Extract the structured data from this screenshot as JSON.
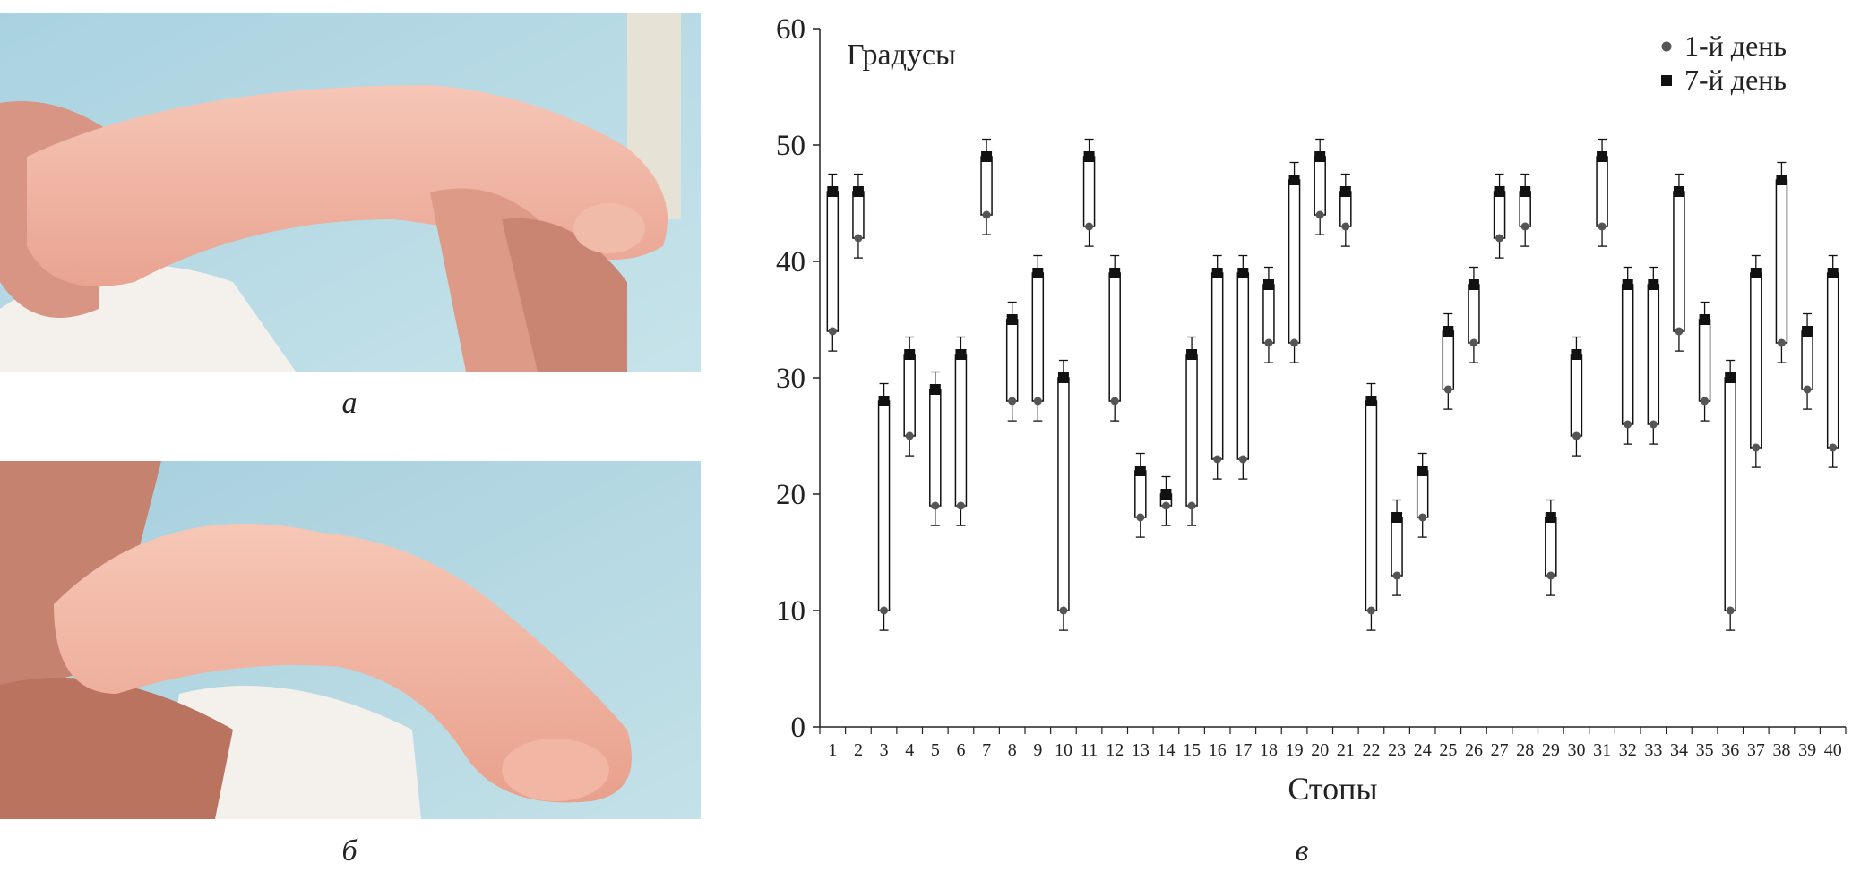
{
  "captions": {
    "a": "а",
    "b": "б",
    "c": "в"
  },
  "colors": {
    "skin": "#f2b8a8",
    "background_blue": "#b8dbe6",
    "diaper": "#f4f1ec",
    "marker": "#111111",
    "point_day1": "#555555"
  },
  "chart_data": {
    "type": "scatter",
    "ylabel": "Градусы",
    "xlabel": "Стопы",
    "ylim": [
      0,
      60
    ],
    "yticks": [
      0,
      10,
      20,
      30,
      40,
      50,
      60
    ],
    "grid": false,
    "legend_position": "top-right",
    "categories": [
      "1",
      "2",
      "3",
      "4",
      "5",
      "6",
      "7",
      "8",
      "9",
      "10",
      "11",
      "12",
      "13",
      "14",
      "15",
      "16",
      "17",
      "18",
      "19",
      "20",
      "21",
      "22",
      "23",
      "24",
      "25",
      "26",
      "27",
      "28",
      "29",
      "30",
      "31",
      "32",
      "33",
      "34",
      "35",
      "36",
      "37",
      "38",
      "39",
      "40"
    ],
    "series": [
      {
        "name": "1-й день",
        "marker": "circle",
        "values": [
          34,
          42,
          10,
          25,
          19,
          19,
          44,
          28,
          28,
          10,
          43,
          28,
          18,
          19,
          19,
          23,
          23,
          33,
          33,
          44,
          43,
          10,
          13,
          18,
          29,
          33,
          42,
          43,
          13,
          25,
          43,
          26,
          26,
          34,
          28,
          10,
          24,
          33,
          29,
          24
        ]
      },
      {
        "name": "7-й день",
        "marker": "square",
        "values": [
          46,
          46,
          28,
          32,
          29,
          32,
          49,
          35,
          39,
          30,
          49,
          39,
          22,
          20,
          32,
          39,
          39,
          38,
          47,
          49,
          46,
          28,
          18,
          22,
          34,
          38,
          46,
          46,
          18,
          32,
          49,
          38,
          38,
          46,
          35,
          30,
          39,
          47,
          34,
          39
        ]
      }
    ]
  }
}
